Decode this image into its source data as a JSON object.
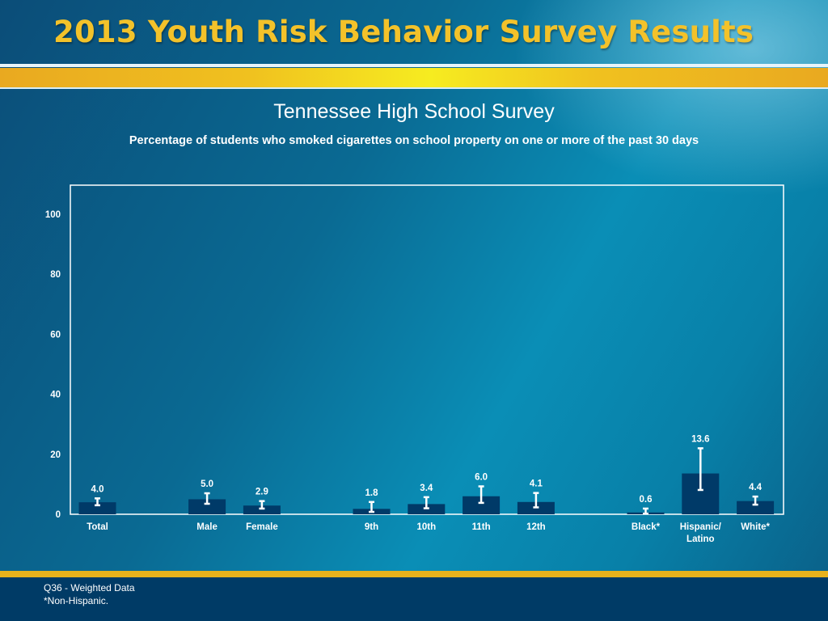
{
  "header": {
    "title": "2013 Youth Risk Behavior Survey Results"
  },
  "colors": {
    "gold": "#f3c22a",
    "bar": "#003a68",
    "error_bar": "#ffffff",
    "plot_border": "#ffffff",
    "footer": "#003b66"
  },
  "chart_data": {
    "type": "bar",
    "title": "Tennessee High School Survey",
    "subtitle": "Percentage of students who smoked cigarettes on school property on one or more of the past 30 days",
    "xlabel": "",
    "ylabel": "",
    "ylim": [
      0,
      110
    ],
    "yticks": [
      0,
      20,
      40,
      60,
      80,
      100
    ],
    "grid": false,
    "legend": "none",
    "categories": [
      "Total",
      "Male",
      "Female",
      "9th",
      "10th",
      "11th",
      "12th",
      "Black*",
      "Hispanic/\nLatino",
      "White*"
    ],
    "groups": [
      [
        "Total"
      ],
      [
        "Male",
        "Female"
      ],
      [
        "9th",
        "10th",
        "11th",
        "12th"
      ],
      [
        "Black*",
        "Hispanic/\nLatino",
        "White*"
      ]
    ],
    "values": [
      4.0,
      5.0,
      2.9,
      1.8,
      3.4,
      6.0,
      4.1,
      0.6,
      13.6,
      4.4
    ],
    "value_labels": [
      "4.0",
      "5.0",
      "2.9",
      "1.8",
      "3.4",
      "6.0",
      "4.1",
      "0.6",
      "13.6",
      "4.4"
    ],
    "ci_lower": [
      3.0,
      3.5,
      1.9,
      0.8,
      2.0,
      3.8,
      2.3,
      0.2,
      8.1,
      3.2
    ],
    "ci_upper": [
      5.3,
      7.0,
      4.4,
      4.1,
      5.7,
      9.3,
      7.1,
      1.9,
      22.0,
      5.9
    ]
  },
  "footer": {
    "note_1": "Q36 - Weighted Data",
    "note_2": "*Non-Hispanic."
  }
}
